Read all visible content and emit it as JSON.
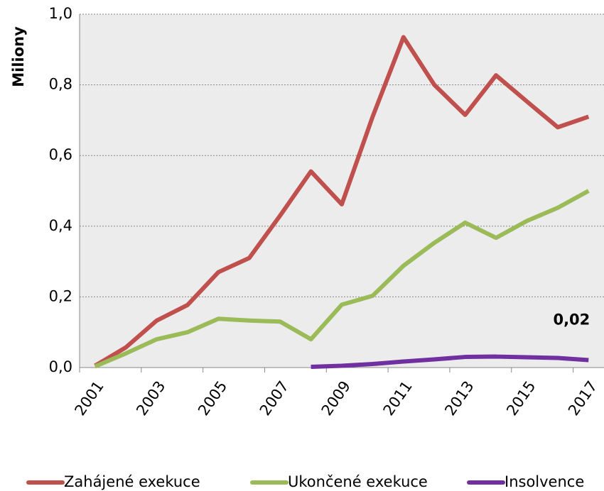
{
  "chart_data": {
    "type": "line",
    "y_label": "Miliony",
    "categories": [
      "2001",
      null,
      "2003",
      null,
      "2005",
      null,
      "2007",
      null,
      "2009",
      null,
      "2011",
      null,
      "2013",
      null,
      "2015",
      null,
      "2017"
    ],
    "series": [
      {
        "name": "Zahájené exekuce",
        "color": "#c0504d",
        "values": [
          0.005,
          0.057,
          0.133,
          0.177,
          0.27,
          0.31,
          0.43,
          0.555,
          0.462,
          0.71,
          0.935,
          0.8,
          0.715,
          0.827,
          0.753,
          0.68,
          0.71
        ]
      },
      {
        "name": "Ukončené exekuce",
        "color": "#9bbb59",
        "values": [
          0.003,
          0.04,
          0.08,
          0.1,
          0.138,
          0.133,
          0.13,
          0.08,
          0.178,
          0.203,
          0.288,
          0.353,
          0.41,
          0.367,
          0.415,
          0.452,
          0.5
        ]
      },
      {
        "name": "Insolvence",
        "color": "#7030a0",
        "values": [
          null,
          null,
          null,
          null,
          null,
          null,
          null,
          0.002,
          0.005,
          0.01,
          0.017,
          0.023,
          0.03,
          0.031,
          0.029,
          0.027,
          0.021
        ],
        "value_labels": [
          null,
          null,
          null,
          null,
          null,
          null,
          null,
          null,
          null,
          null,
          null,
          null,
          null,
          null,
          null,
          null,
          "0,02"
        ]
      }
    ],
    "ylim": [
      0,
      1
    ],
    "yticks": [
      {
        "value": 0,
        "label": "0,0"
      },
      {
        "value": 0.2,
        "label": "0,2"
      },
      {
        "value": 0.4,
        "label": "0,4"
      },
      {
        "value": 0.6,
        "label": "0,6"
      },
      {
        "value": 0.8,
        "label": "0,8"
      },
      {
        "value": 1,
        "label": "1,0"
      }
    ],
    "grid": true,
    "legend": "bottom"
  }
}
